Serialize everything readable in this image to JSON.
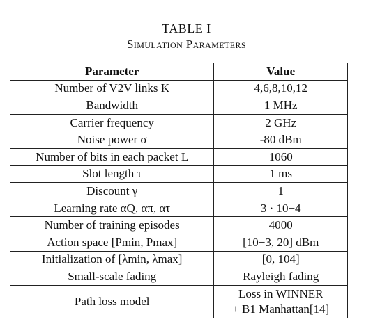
{
  "caption": {
    "title": "TABLE I",
    "subtitle": "Simulation Parameters"
  },
  "table": {
    "headers": {
      "parameter": "Parameter",
      "value": "Value"
    },
    "rows": [
      {
        "parameter": "Number of V2V links K",
        "value": "4,6,8,10,12"
      },
      {
        "parameter": "Bandwidth",
        "value": "1 MHz"
      },
      {
        "parameter": "Carrier frequency",
        "value": "2 GHz"
      },
      {
        "parameter": "Noise power σ",
        "value": "-80 dBm"
      },
      {
        "parameter": "Number of bits in each packet L",
        "value": "1060"
      },
      {
        "parameter": "Slot length τ",
        "value": "1 ms"
      },
      {
        "parameter": "Discount γ",
        "value": "1"
      },
      {
        "parameter": "Learning rate αQ, απ, ατ",
        "value": "3 · 10−4"
      },
      {
        "parameter": "Number of training episodes",
        "value": "4000"
      },
      {
        "parameter": "Action space [Pmin, Pmax]",
        "value": "[10−3, 20] dBm"
      },
      {
        "parameter": "Initialization of [λmin, λmax]",
        "value": "[0, 104]"
      },
      {
        "parameter": "Small-scale fading",
        "value": "Rayleigh fading"
      },
      {
        "parameter": "Path loss model",
        "value_lines": [
          "Loss in WINNER",
          "+ B1 Manhattan[14]"
        ]
      }
    ]
  }
}
